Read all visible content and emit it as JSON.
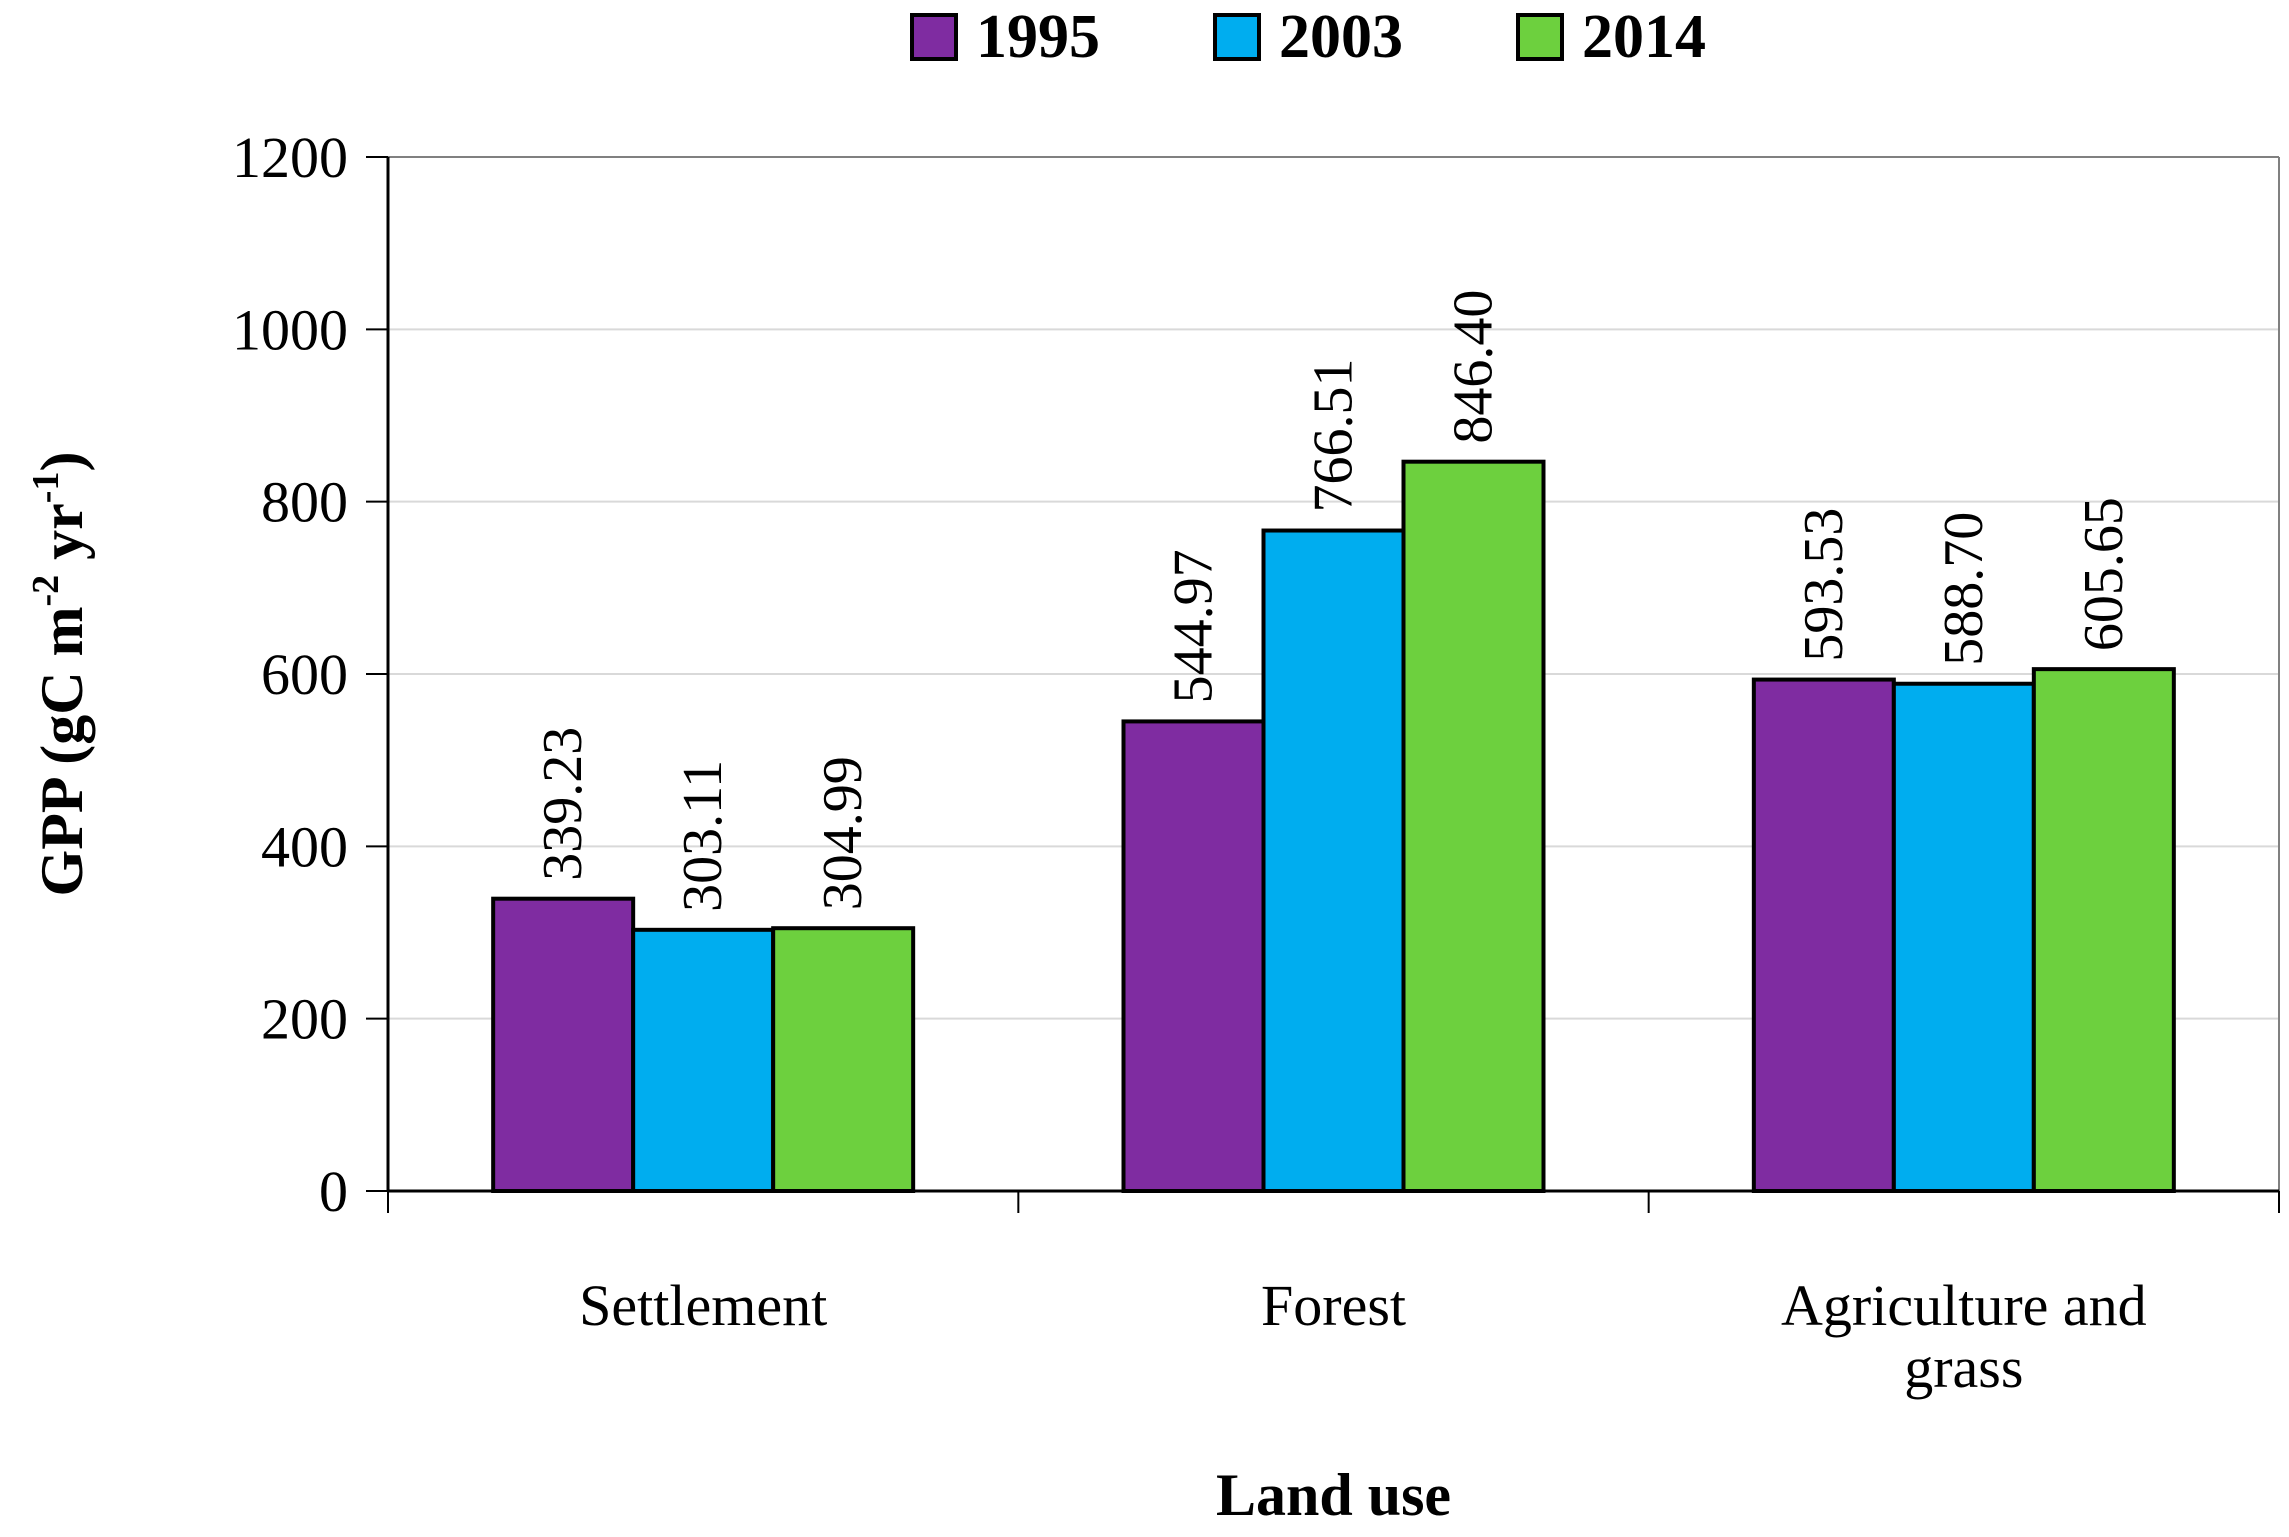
{
  "chart_data": {
    "type": "bar",
    "title": "",
    "xlabel": "Land use",
    "ylabel": "GPP (gC m",
    "ylabel_sup1": "-2",
    "ylabel_mid": " yr",
    "ylabel_sup2": "-1",
    "ylabel_end": ")",
    "ylim": [
      0,
      1200
    ],
    "yticks": [
      "0",
      "200",
      "400",
      "600",
      "800",
      "1000",
      "1200"
    ],
    "categories": [
      [
        "Settlement"
      ],
      [
        "Forest"
      ],
      [
        "Agriculture and",
        "grass"
      ]
    ],
    "series": [
      {
        "name": "1995",
        "color": "#7f2ca1",
        "values": [
          339.23,
          544.97,
          593.53
        ],
        "labels": [
          "339.23",
          "544.97",
          "593.53"
        ]
      },
      {
        "name": "2003",
        "color": "#00adef",
        "values": [
          303.11,
          766.51,
          588.7
        ],
        "labels": [
          "303.11",
          "766.51",
          "588.70"
        ]
      },
      {
        "name": "2014",
        "color": "#6dd03e",
        "values": [
          304.99,
          846.4,
          605.65
        ],
        "labels": [
          "304.99",
          "846.40",
          "605.65"
        ]
      }
    ],
    "legend": "top-center",
    "grid": true
  }
}
